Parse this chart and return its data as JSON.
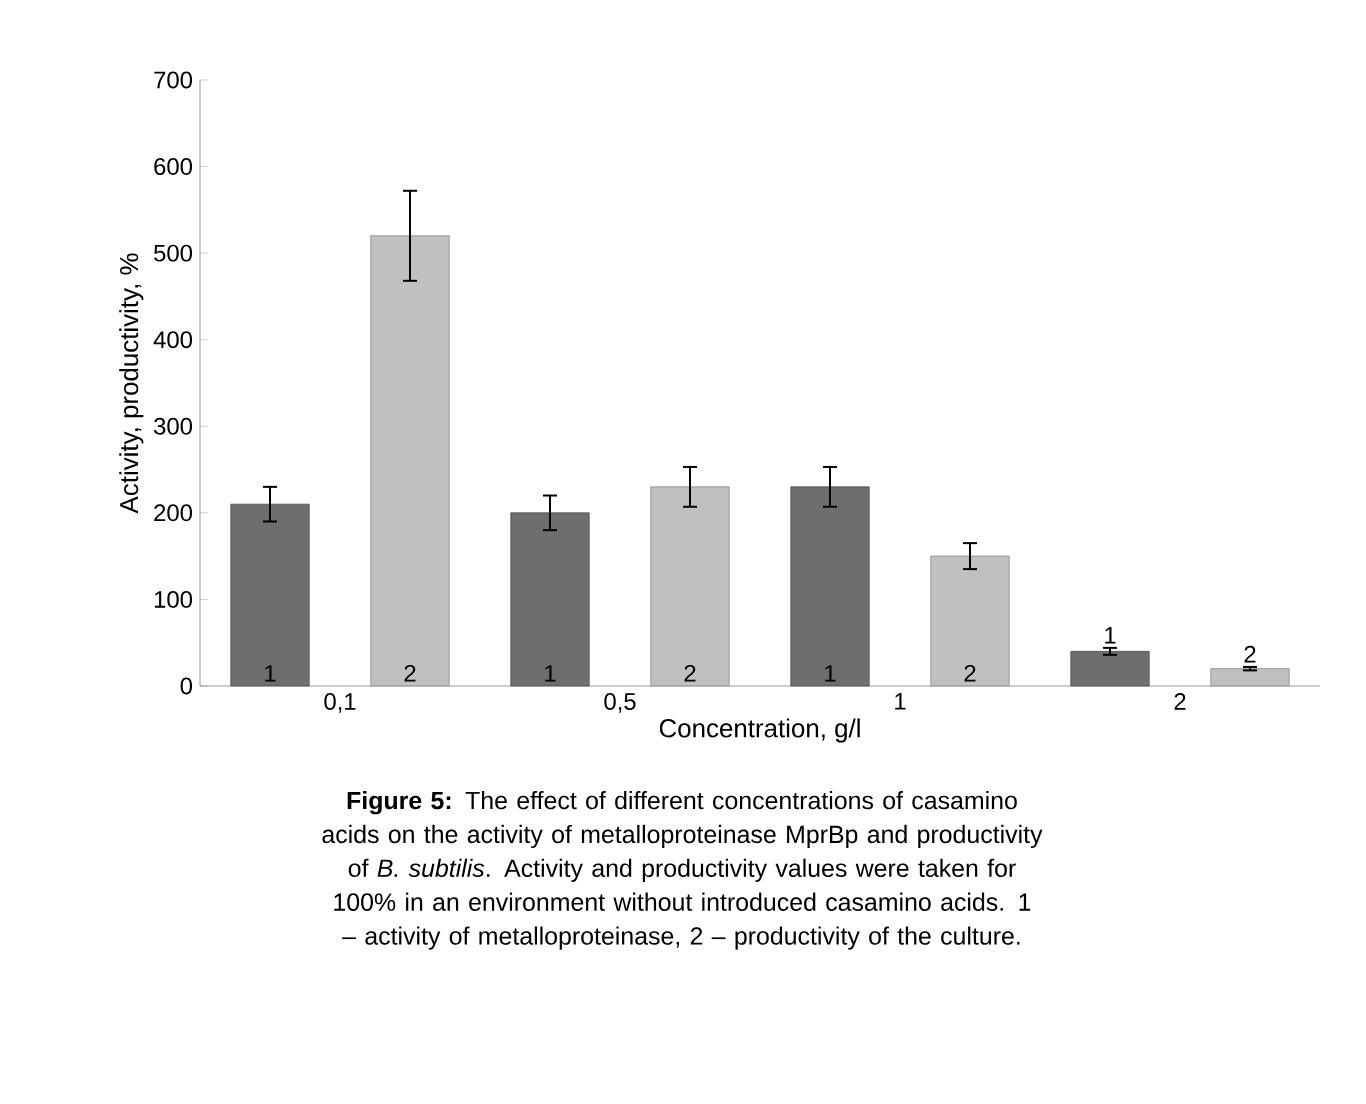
{
  "chart_data": {
    "type": "bar",
    "xlabel": "Concentration, g/l",
    "ylabel": "Activity, productivity, %",
    "categories": [
      "0,1",
      "0,5",
      "1",
      "2"
    ],
    "series": [
      {
        "name": "1",
        "color": "#6e6e6e",
        "values": [
          210,
          200,
          230,
          40
        ],
        "errors": [
          20,
          20,
          23,
          4
        ]
      },
      {
        "name": "2",
        "color": "#c0c0c0",
        "values": [
          520,
          230,
          150,
          20
        ],
        "errors": [
          52,
          23,
          15,
          2
        ]
      }
    ],
    "ylim": [
      0,
      700
    ],
    "yticks": [
      0,
      100,
      200,
      300,
      400,
      500,
      600,
      700
    ],
    "grid": false,
    "legend": false,
    "annotations": [
      "**Figure 5:** The effect of different concentrations of casamino acids on the activity of metalloproteinase MprBp and productivity of *B. subtilis*. Activity and productivity values were taken for 100% in an environment without introduced casamino acids. 1 – activity of metalloproteinase, 2 – productivity of the culture."
    ]
  }
}
